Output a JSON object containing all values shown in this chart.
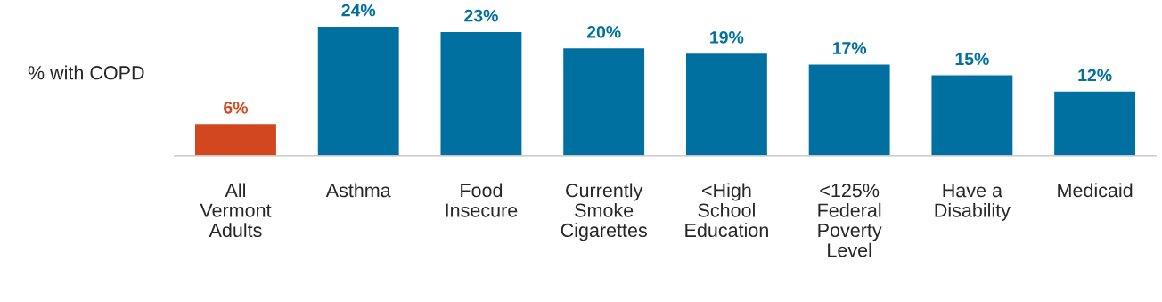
{
  "chart_data": {
    "type": "bar",
    "ylabel": "% with COPD",
    "categories": [
      "All\nVermont\nAdults",
      "Asthma",
      "Food\nInsecure",
      "Currently\nSmoke\nCigarettes",
      "<High\nSchool\nEducation",
      "<125%\nFederal\nPoverty\nLevel",
      "Have a\nDisability",
      "Medicaid"
    ],
    "values": [
      6,
      24,
      23,
      20,
      19,
      17,
      15,
      12
    ],
    "colors": [
      "#d24720",
      "#0070a0",
      "#0070a0",
      "#0070a0",
      "#0070a0",
      "#0070a0",
      "#0070a0",
      "#0070a0"
    ],
    "value_labels": [
      "6%",
      "24%",
      "23%",
      "20%",
      "19%",
      "17%",
      "15%",
      "12%"
    ],
    "relative": false,
    "grid": false,
    "legend": false
  }
}
